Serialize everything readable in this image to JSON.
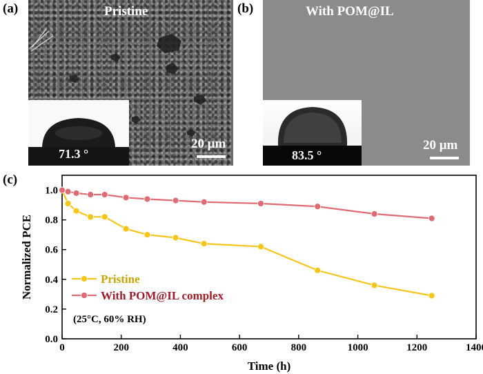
{
  "panels": {
    "a": {
      "label": "(a)",
      "title": "Pristine",
      "contact_angle": "71.3 °",
      "scale_bar": "20 μm"
    },
    "b": {
      "label": "(b)",
      "title": "With POM@IL",
      "contact_angle": "83.5 °",
      "scale_bar": "20 μm"
    },
    "c": {
      "label": "(c)"
    }
  },
  "chart_data": {
    "type": "line",
    "xlabel": "Time (h)",
    "ylabel": "Normalized PCE",
    "xlim": [
      0,
      1400
    ],
    "ylim": [
      0.0,
      1.1
    ],
    "xticks": [
      0,
      200,
      400,
      600,
      800,
      1000,
      1200,
      1400
    ],
    "yticks": [
      0.0,
      0.2,
      0.4,
      0.6,
      0.8,
      1.0
    ],
    "ytick_labels": [
      "0.0",
      "0.2",
      "0.4",
      "0.6",
      "0.8",
      "1.0"
    ],
    "legend_position": "lower-left",
    "annotation": "(25°C, 60% RH)",
    "series": [
      {
        "name": "Pristine",
        "color": "#f5c518",
        "label_color": "#c9a400",
        "x": [
          0,
          20,
          48,
          96,
          144,
          216,
          288,
          384,
          480,
          672,
          864,
          1056,
          1250
        ],
        "y": [
          1.0,
          0.91,
          0.86,
          0.82,
          0.82,
          0.74,
          0.7,
          0.68,
          0.64,
          0.62,
          0.46,
          0.36,
          0.29
        ]
      },
      {
        "name": "With POM@IL complex",
        "color": "#e06a72",
        "label_color": "#a01c28",
        "x": [
          0,
          20,
          48,
          96,
          144,
          216,
          288,
          384,
          480,
          672,
          864,
          1056,
          1250
        ],
        "y": [
          1.0,
          0.99,
          0.98,
          0.97,
          0.97,
          0.95,
          0.94,
          0.93,
          0.92,
          0.91,
          0.89,
          0.84,
          0.81
        ]
      }
    ]
  }
}
